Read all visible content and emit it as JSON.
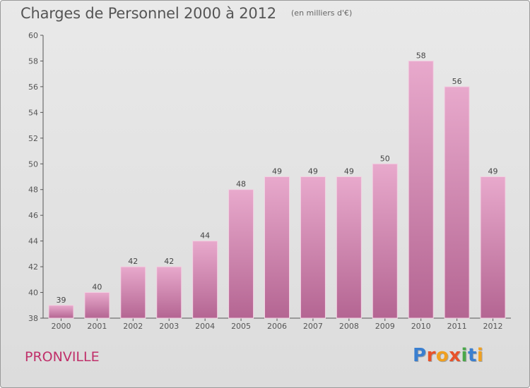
{
  "header": {
    "title": "Charges de Personnel 2000 à 2012",
    "subtitle": "(en milliers d'€)"
  },
  "footer": {
    "commune": "PRONVILLE",
    "brand": "Proxiti",
    "brand_colors": [
      "#3a7fd0",
      "#e8522a",
      "#f0a020",
      "#e8522a",
      "#4aa84a",
      "#3a7fd0",
      "#f0a020"
    ]
  },
  "colors": {
    "bar_top": "#e8a9cc",
    "bar_bottom": "#b46592",
    "commune": "#c0306a"
  },
  "chart_data": {
    "type": "bar",
    "categories": [
      "2000",
      "2001",
      "2002",
      "2003",
      "2004",
      "2005",
      "2006",
      "2007",
      "2008",
      "2009",
      "2010",
      "2011",
      "2012"
    ],
    "values": [
      39,
      40,
      42,
      42,
      44,
      48,
      49,
      49,
      49,
      50,
      58,
      56,
      49
    ],
    "ylim": [
      38,
      60
    ],
    "yticks": [
      38,
      40,
      42,
      44,
      46,
      48,
      50,
      52,
      54,
      56,
      58,
      60
    ],
    "grid": false,
    "legend": "none"
  }
}
